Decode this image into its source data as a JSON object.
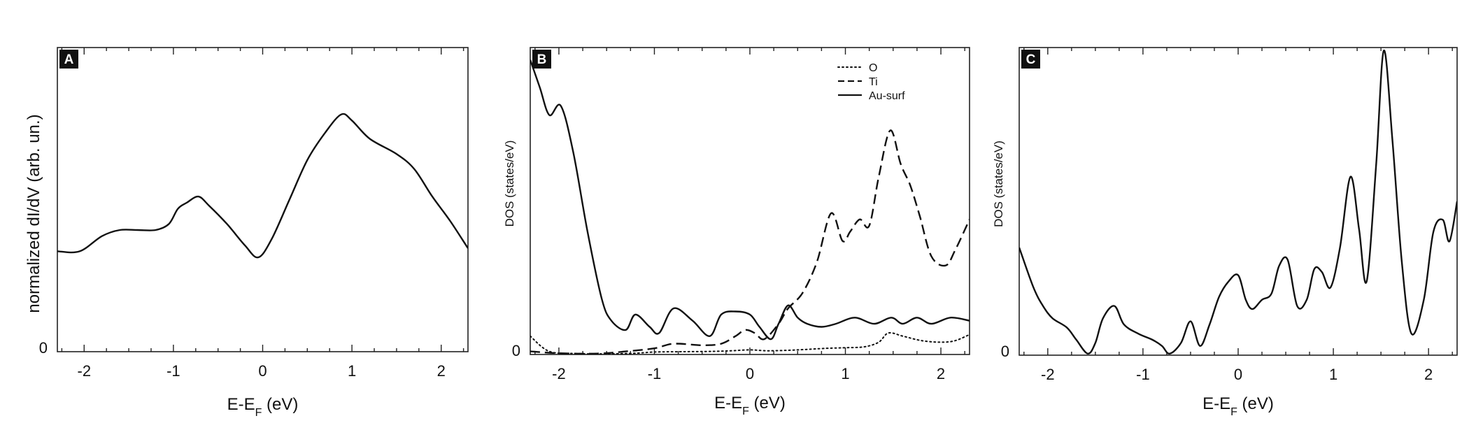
{
  "chart_data": [
    {
      "type": "line",
      "panel_label": "A",
      "xlabel": "E-E",
      "xlabel_sub": "F",
      "xlabel_unit": " (eV)",
      "ylabel": "normalized dI/dV (arb. un.)",
      "xlim": [
        -2.3,
        2.3
      ],
      "ylim": [
        0,
        1
      ],
      "xticks": [
        -2,
        -1,
        0,
        1,
        2
      ],
      "yticks": [
        0
      ],
      "series": [
        {
          "style": "solid",
          "x": [
            -2.3,
            -2.05,
            -1.8,
            -1.6,
            -1.4,
            -1.2,
            -1.05,
            -0.95,
            -0.85,
            -0.72,
            -0.6,
            -0.4,
            -0.2,
            -0.05,
            0.1,
            0.3,
            0.5,
            0.7,
            0.88,
            1.0,
            1.2,
            1.5,
            1.7,
            1.9,
            2.1,
            2.3
          ],
          "y": [
            0.33,
            0.33,
            0.38,
            0.4,
            0.4,
            0.4,
            0.42,
            0.47,
            0.49,
            0.51,
            0.48,
            0.42,
            0.35,
            0.31,
            0.37,
            0.5,
            0.63,
            0.72,
            0.78,
            0.76,
            0.7,
            0.65,
            0.6,
            0.51,
            0.43,
            0.34
          ]
        }
      ]
    },
    {
      "type": "line",
      "panel_label": "B",
      "xlabel": "E-E",
      "xlabel_sub": "F",
      "xlabel_unit": " (eV)",
      "ylabel": "DOS (states/eV)",
      "xlim": [
        -2.3,
        2.3
      ],
      "ylim": [
        0,
        1
      ],
      "xticks": [
        -2,
        -1,
        0,
        1,
        2
      ],
      "yticks": [
        0
      ],
      "legend_position": "top-right",
      "series": [
        {
          "name": "O",
          "style": "dotted",
          "x": [
            -2.3,
            -2.1,
            -1.8,
            -1.5,
            -1.2,
            -1.0,
            -0.7,
            -0.4,
            -0.2,
            0.0,
            0.2,
            0.5,
            0.8,
            1.0,
            1.2,
            1.35,
            1.45,
            1.6,
            1.8,
            2.0,
            2.15,
            2.3
          ],
          "y": [
            0.06,
            0.01,
            0.003,
            0.002,
            0.004,
            0.008,
            0.009,
            0.01,
            0.012,
            0.015,
            0.012,
            0.015,
            0.02,
            0.022,
            0.025,
            0.04,
            0.07,
            0.06,
            0.045,
            0.04,
            0.045,
            0.065
          ]
        },
        {
          "name": "Ti",
          "style": "dashed",
          "x": [
            -2.3,
            -2.0,
            -1.6,
            -1.3,
            -1.0,
            -0.8,
            -0.5,
            -0.3,
            -0.15,
            -0.05,
            0.05,
            0.15,
            0.3,
            0.4,
            0.55,
            0.7,
            0.85,
            0.97,
            1.05,
            1.15,
            1.25,
            1.35,
            1.47,
            1.58,
            1.68,
            1.78,
            1.9,
            2.05,
            2.15,
            2.3
          ],
          "y": [
            0.01,
            0.004,
            0.003,
            0.01,
            0.02,
            0.035,
            0.03,
            0.035,
            0.06,
            0.08,
            0.07,
            0.05,
            0.1,
            0.15,
            0.2,
            0.3,
            0.46,
            0.37,
            0.4,
            0.44,
            0.42,
            0.58,
            0.73,
            0.62,
            0.55,
            0.45,
            0.32,
            0.29,
            0.34,
            0.44
          ]
        },
        {
          "name": "Au-surf",
          "style": "solid",
          "x": [
            -2.3,
            -2.2,
            -2.1,
            -1.98,
            -1.85,
            -1.7,
            -1.55,
            -1.45,
            -1.3,
            -1.2,
            -1.05,
            -0.95,
            -0.8,
            -0.6,
            -0.42,
            -0.3,
            -0.15,
            0.0,
            0.1,
            0.22,
            0.3,
            0.4,
            0.5,
            0.6,
            0.75,
            0.9,
            1.1,
            1.3,
            1.48,
            1.6,
            1.75,
            1.9,
            2.1,
            2.3
          ],
          "y": [
            0.96,
            0.87,
            0.78,
            0.81,
            0.66,
            0.4,
            0.18,
            0.11,
            0.08,
            0.13,
            0.09,
            0.07,
            0.15,
            0.11,
            0.06,
            0.13,
            0.14,
            0.13,
            0.09,
            0.05,
            0.1,
            0.16,
            0.12,
            0.1,
            0.09,
            0.1,
            0.12,
            0.1,
            0.12,
            0.1,
            0.12,
            0.1,
            0.12,
            0.11
          ]
        }
      ]
    },
    {
      "type": "line",
      "panel_label": "C",
      "xlabel": "E-E",
      "xlabel_sub": "F",
      "xlabel_unit": " (eV)",
      "ylabel": "DOS (states/eV)",
      "xlim": [
        -2.3,
        2.3
      ],
      "ylim": [
        0,
        1
      ],
      "xticks": [
        -2,
        -1,
        0,
        1,
        2
      ],
      "yticks": [
        0
      ],
      "series": [
        {
          "style": "solid",
          "x": [
            -2.3,
            -2.15,
            -2.05,
            -1.95,
            -1.8,
            -1.7,
            -1.58,
            -1.5,
            -1.42,
            -1.3,
            -1.2,
            -1.05,
            -0.9,
            -0.8,
            -0.72,
            -0.6,
            -0.5,
            -0.4,
            -0.3,
            -0.2,
            -0.1,
            0.0,
            0.08,
            0.15,
            0.25,
            0.35,
            0.43,
            0.52,
            0.62,
            0.72,
            0.8,
            0.88,
            0.97,
            1.07,
            1.18,
            1.27,
            1.35,
            1.45,
            1.53,
            1.62,
            1.72,
            1.82,
            1.95,
            2.05,
            2.15,
            2.22,
            2.3
          ],
          "y": [
            0.35,
            0.22,
            0.16,
            0.12,
            0.09,
            0.05,
            0.005,
            0.04,
            0.12,
            0.16,
            0.1,
            0.07,
            0.05,
            0.03,
            0.005,
            0.04,
            0.11,
            0.03,
            0.1,
            0.19,
            0.24,
            0.26,
            0.18,
            0.15,
            0.18,
            0.2,
            0.29,
            0.31,
            0.16,
            0.18,
            0.28,
            0.27,
            0.22,
            0.35,
            0.58,
            0.41,
            0.24,
            0.62,
            0.99,
            0.7,
            0.3,
            0.07,
            0.18,
            0.4,
            0.44,
            0.37,
            0.5
          ]
        }
      ]
    }
  ]
}
